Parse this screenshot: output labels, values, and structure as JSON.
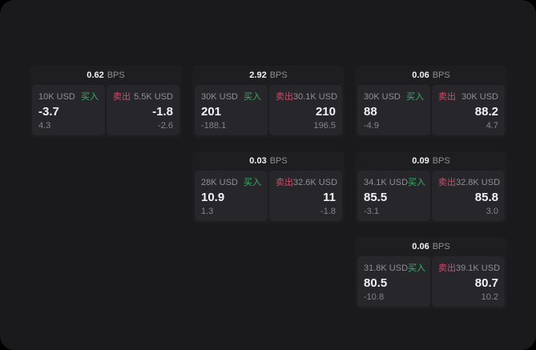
{
  "labels": {
    "buy": "买入",
    "sell": "卖出",
    "bps": "BPS"
  },
  "colors": {
    "background": "#000000",
    "panel": "#1a1a1c",
    "card": "#1e1e21",
    "subcard": "#27272b",
    "text_primary": "#f2f2f3",
    "text_secondary": "#8f8f94",
    "buy_green": "#34b369",
    "sell_red": "#cf4d68"
  },
  "cards": [
    {
      "col": 1,
      "row": 1,
      "bps": "0.62",
      "buy": {
        "amount": "10K USD",
        "value": "-3.7",
        "delta": "4.3"
      },
      "sell": {
        "amount": "5.5K USD",
        "value": "-1.8",
        "delta": "-2.6"
      }
    },
    {
      "col": 2,
      "row": 1,
      "bps": "2.92",
      "buy": {
        "amount": "30K USD",
        "value": "201",
        "delta": "-188.1"
      },
      "sell": {
        "amount": "30.1K USD",
        "value": "210",
        "delta": "196.5"
      }
    },
    {
      "col": 3,
      "row": 1,
      "bps": "0.06",
      "buy": {
        "amount": "30K USD",
        "value": "88",
        "delta": "-4.9"
      },
      "sell": {
        "amount": "30K USD",
        "value": "88.2",
        "delta": "4.7"
      }
    },
    {
      "col": 2,
      "row": 2,
      "bps": "0.03",
      "buy": {
        "amount": "28K USD",
        "value": "10.9",
        "delta": "1.3"
      },
      "sell": {
        "amount": "32.6K USD",
        "value": "11",
        "delta": "-1.8"
      }
    },
    {
      "col": 3,
      "row": 2,
      "bps": "0.09",
      "buy": {
        "amount": "34.1K USD",
        "value": "85.5",
        "delta": "-3.1"
      },
      "sell": {
        "amount": "32.8K USD",
        "value": "85.8",
        "delta": "3.0"
      }
    },
    {
      "col": 3,
      "row": 3,
      "bps": "0.06",
      "buy": {
        "amount": "31.8K USD",
        "value": "80.5",
        "delta": "-10.8"
      },
      "sell": {
        "amount": "39.1K USD",
        "value": "80.7",
        "delta": "10.2"
      }
    }
  ]
}
